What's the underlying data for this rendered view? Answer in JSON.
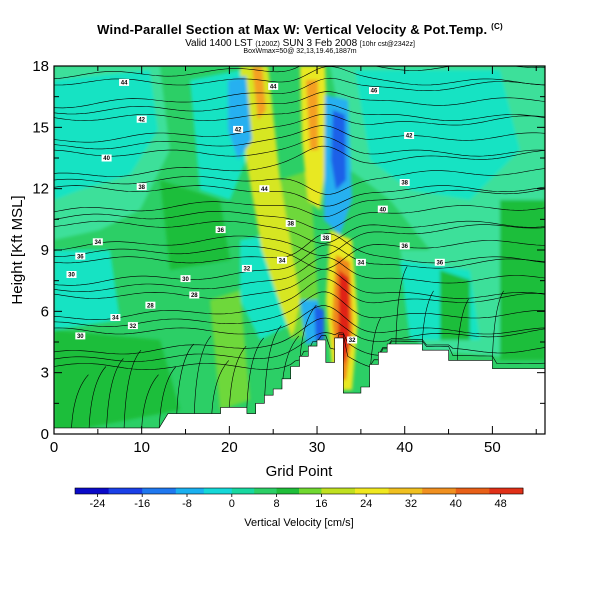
{
  "title": {
    "main": "Wind-Parallel Section at Max W: Vertical Velocity & Pot.Temp.",
    "corner": "(C)",
    "valid": "Valid 1400 LST",
    "valid_small1": "(1200Z)",
    "valid_date": "SUN 3 Feb 2008",
    "valid_small2": "[10hr cst@2342z]",
    "sub": "BoxWmax=50@ 32,13,19.46,1887m"
  },
  "chart_data": {
    "type": "heatmap",
    "xlabel": "Grid Point",
    "ylabel": "Height [Kft MSL]",
    "xlim": [
      0,
      56
    ],
    "ylim": [
      0,
      18
    ],
    "x_ticks": [
      0,
      10,
      20,
      30,
      40,
      50
    ],
    "y_ticks": [
      0,
      3,
      6,
      9,
      12,
      15,
      18
    ],
    "x_tick_labels": [
      "0",
      "10",
      "20",
      "30",
      "40",
      "50"
    ],
    "y_tick_labels": [
      "0",
      "3",
      "6",
      "9",
      "12",
      "15",
      "18"
    ],
    "colorbar": {
      "label": "Vertical Velocity [cm/s]",
      "min": -28,
      "max": 52,
      "tick_values": [
        -24,
        -16,
        -8,
        0,
        8,
        16,
        24,
        32,
        40,
        48
      ],
      "tick_labels": [
        "-24",
        "-16",
        "-8",
        "0",
        "8",
        "16",
        "24",
        "32",
        "40",
        "48"
      ]
    },
    "terrain_profile": [
      [
        0,
        0.3
      ],
      [
        12,
        0.3
      ],
      [
        13,
        1.0
      ],
      [
        19,
        1.0
      ],
      [
        19,
        1.3
      ],
      [
        22,
        1.3
      ],
      [
        22,
        1.0
      ],
      [
        23,
        1.0
      ],
      [
        23,
        1.5
      ],
      [
        24,
        1.5
      ],
      [
        24,
        1.9
      ],
      [
        25,
        1.9
      ],
      [
        25,
        2.2
      ],
      [
        26,
        2.2
      ],
      [
        26,
        2.7
      ],
      [
        27,
        2.7
      ],
      [
        27,
        3.3
      ],
      [
        28,
        3.3
      ],
      [
        28,
        3.8
      ],
      [
        29,
        3.8
      ],
      [
        29,
        4.3
      ],
      [
        30,
        4.3
      ],
      [
        30,
        4.6
      ],
      [
        31,
        4.6
      ],
      [
        31,
        3.5
      ],
      [
        32,
        3.5
      ],
      [
        32,
        4.7
      ],
      [
        33,
        4.7
      ],
      [
        33,
        2.0
      ],
      [
        35,
        2.0
      ],
      [
        35,
        2.3
      ],
      [
        36,
        2.3
      ],
      [
        36,
        3.4
      ],
      [
        37,
        3.4
      ],
      [
        37,
        4.0
      ],
      [
        38,
        4.0
      ],
      [
        38,
        4.4
      ],
      [
        42,
        4.4
      ],
      [
        42,
        4.1
      ],
      [
        45,
        4.1
      ],
      [
        45,
        3.6
      ],
      [
        50,
        3.6
      ],
      [
        50,
        3.2
      ],
      [
        56,
        3.2
      ]
    ],
    "w_max": {
      "grid_point": 33,
      "height_kft": 6.3,
      "value_cms": 50
    },
    "potential_temperature_labels": [
      {
        "x": 8,
        "y": 17.2,
        "label": "44"
      },
      {
        "x": 25,
        "y": 17.0,
        "label": "44"
      },
      {
        "x": 36.5,
        "y": 16.8,
        "label": "46"
      },
      {
        "x": 10,
        "y": 15.4,
        "label": "42"
      },
      {
        "x": 21,
        "y": 14.9,
        "label": "42"
      },
      {
        "x": 40.5,
        "y": 14.6,
        "label": "42"
      },
      {
        "x": 6,
        "y": 13.5,
        "label": "40"
      },
      {
        "x": 10,
        "y": 12.1,
        "label": "38"
      },
      {
        "x": 24,
        "y": 12.0,
        "label": "44"
      },
      {
        "x": 40,
        "y": 12.3,
        "label": "38"
      },
      {
        "x": 27,
        "y": 10.3,
        "label": "38"
      },
      {
        "x": 19,
        "y": 10.0,
        "label": "36"
      },
      {
        "x": 37.5,
        "y": 11.0,
        "label": "40"
      },
      {
        "x": 31,
        "y": 9.6,
        "label": "38"
      },
      {
        "x": 5,
        "y": 9.4,
        "label": "34"
      },
      {
        "x": 40,
        "y": 9.2,
        "label": "36"
      },
      {
        "x": 3,
        "y": 8.7,
        "label": "36"
      },
      {
        "x": 26,
        "y": 8.5,
        "label": "34"
      },
      {
        "x": 35,
        "y": 8.4,
        "label": "34"
      },
      {
        "x": 44,
        "y": 8.4,
        "label": "36"
      },
      {
        "x": 22,
        "y": 8.1,
        "label": "32"
      },
      {
        "x": 2,
        "y": 7.8,
        "label": "30"
      },
      {
        "x": 15,
        "y": 7.6,
        "label": "30"
      },
      {
        "x": 16,
        "y": 6.8,
        "label": "28"
      },
      {
        "x": 11,
        "y": 6.3,
        "label": "28"
      },
      {
        "x": 7,
        "y": 5.7,
        "label": "34"
      },
      {
        "x": 9,
        "y": 5.3,
        "label": "32"
      },
      {
        "x": 3,
        "y": 4.8,
        "label": "30"
      },
      {
        "x": 34,
        "y": 4.6,
        "label": "32"
      }
    ]
  }
}
